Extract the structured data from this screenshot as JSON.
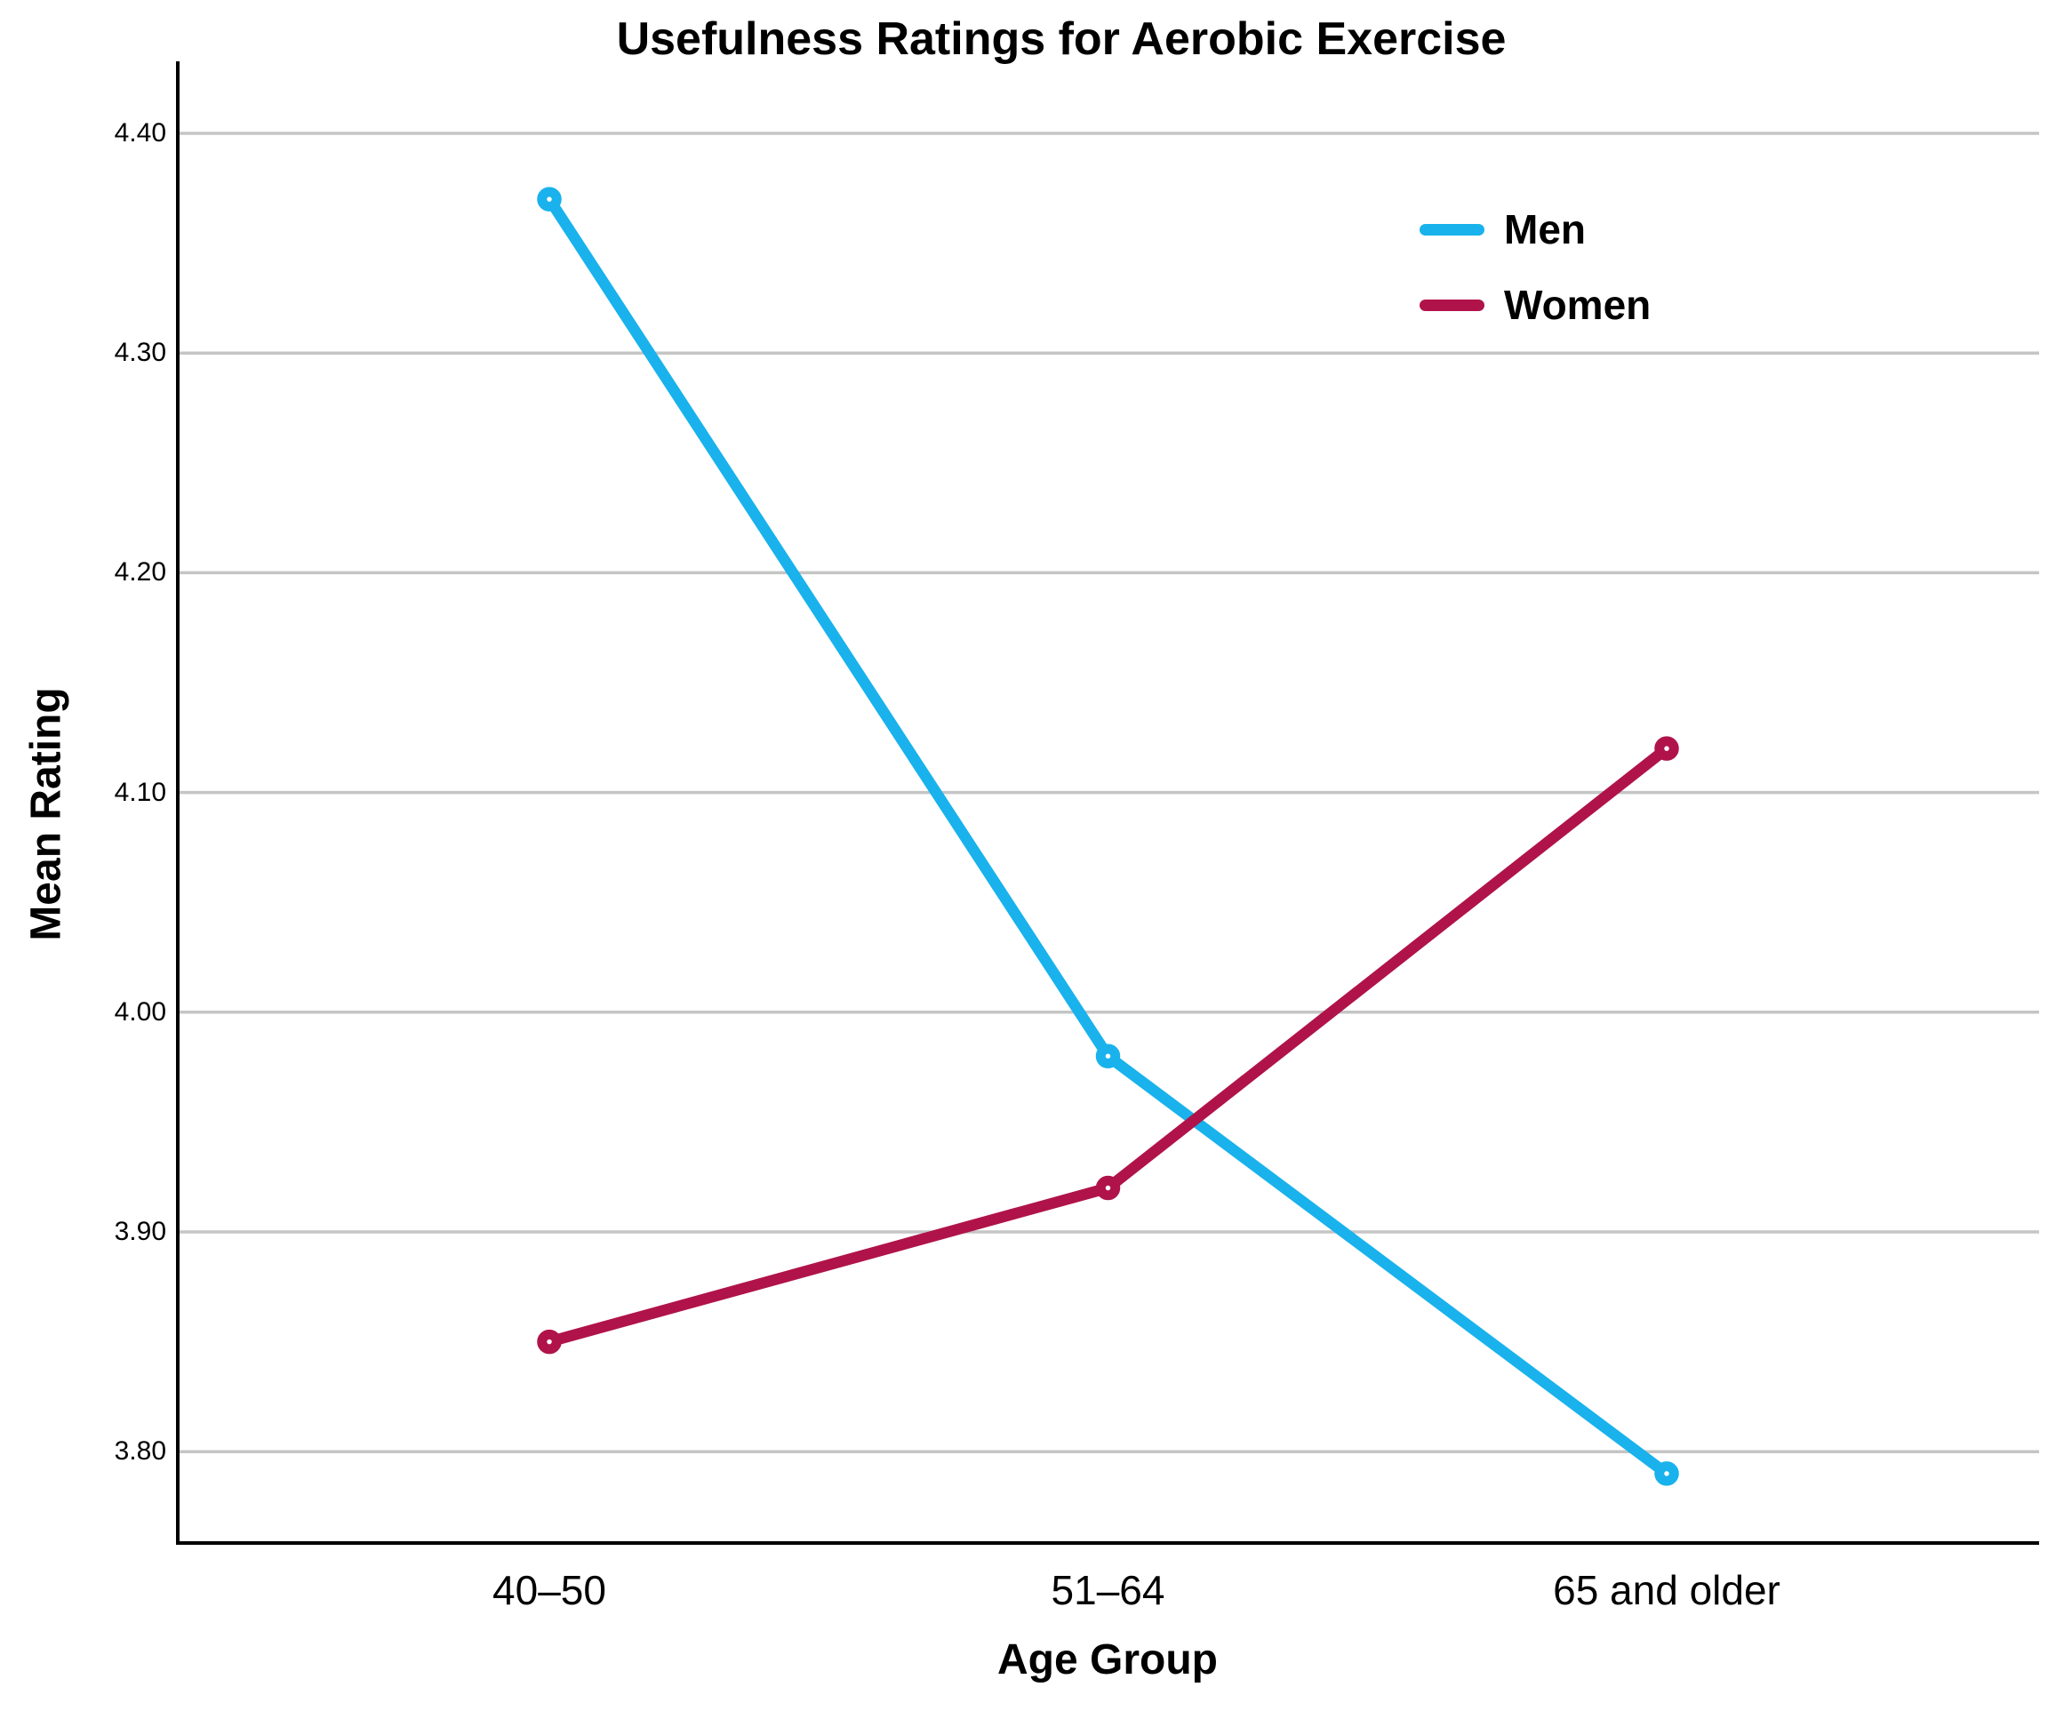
{
  "chart_data": {
    "type": "line",
    "title": "Usefulness Ratings for Aerobic Exercise",
    "xlabel": "Age Group",
    "ylabel": "Mean Rating",
    "categories": [
      "40–50",
      "51–64",
      "65 and older"
    ],
    "series": [
      {
        "name": "Men",
        "color": "#19B2EC",
        "values": [
          4.37,
          3.98,
          3.79
        ]
      },
      {
        "name": "Women",
        "color": "#B01349",
        "values": [
          3.85,
          3.92,
          4.12
        ]
      }
    ],
    "yticks": [
      "4.40",
      "4.30",
      "4.20",
      "4.10",
      "4.00",
      "3.90",
      "3.80"
    ],
    "ylim": [
      3.758,
      4.433
    ],
    "grid": "horizontal",
    "legend_position": "inside-top-right",
    "background": "#FFFFFF",
    "axis_color": "#000000",
    "grid_color": "#C5C5C5",
    "text_color": "#000000"
  }
}
